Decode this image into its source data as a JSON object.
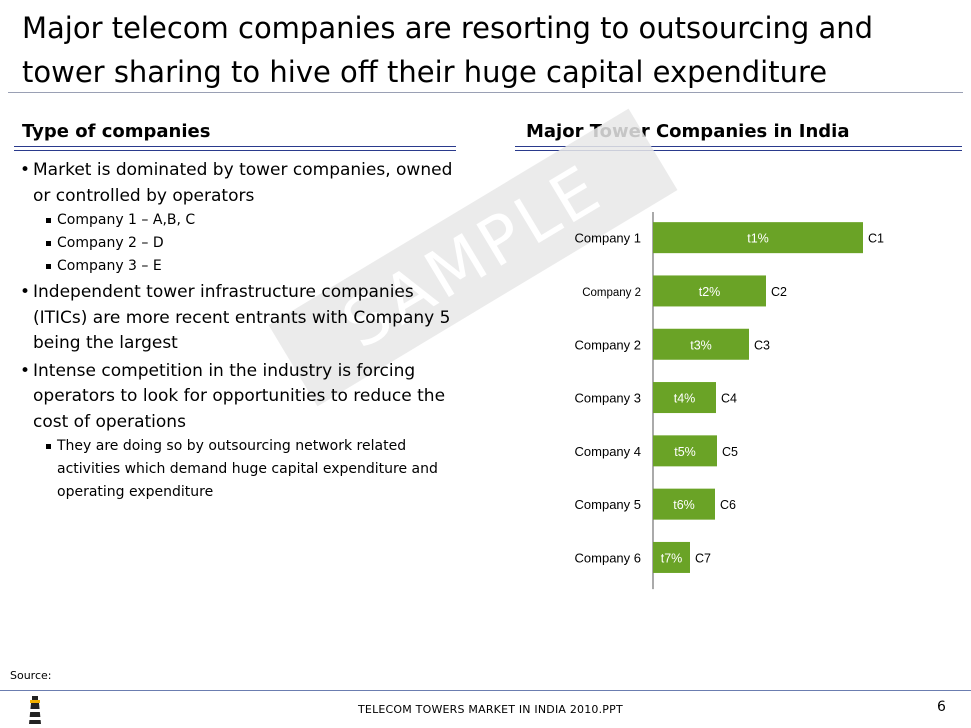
{
  "slide": {
    "title": "Major telecom companies are resorting to outsourcing and tower sharing to hive off their huge capital expenditure",
    "left_heading": "Type of companies",
    "right_heading": "Major Tower Companies in India",
    "bullets": {
      "b1": "Market is dominated by tower companies, owned or controlled by operators",
      "b1_sub": [
        "Company 1 – A,B, C",
        "Company 2 – D",
        "Company 3 – E"
      ],
      "b2": "Independent tower infrastructure companies (ITICs) are more recent entrants with Company 5 being the largest",
      "b3": "Intense competition in the industry is forcing operators to look for opportunities to reduce the cost of operations",
      "b3_sub": [
        "They are doing so by outsourcing network related activities which demand huge capital expenditure and operating expenditure"
      ]
    },
    "watermark": "SAMPLE",
    "source_label": "Source:",
    "footer": "TELECOM TOWERS MARKET IN INDIA 2010.PPT",
    "page_number": "6"
  },
  "chart_data": {
    "type": "bar",
    "orientation": "horizontal",
    "title": "Major Tower Companies in India",
    "categories": [
      "Company 1",
      "Company 2",
      "Company 2",
      "Company 3",
      "Company 4",
      "Company 5",
      "Company 6"
    ],
    "values": [
      210,
      113,
      96,
      63,
      64,
      62,
      37
    ],
    "bar_labels": [
      "t1%",
      "t2%",
      "t3%",
      "t4%",
      "t5%",
      "t6%",
      "t7%"
    ],
    "end_labels": [
      "C1",
      "C2",
      "C3",
      "C4",
      "C5",
      "C6",
      "C7"
    ],
    "bar_color": "#6aa326",
    "grid": false
  }
}
